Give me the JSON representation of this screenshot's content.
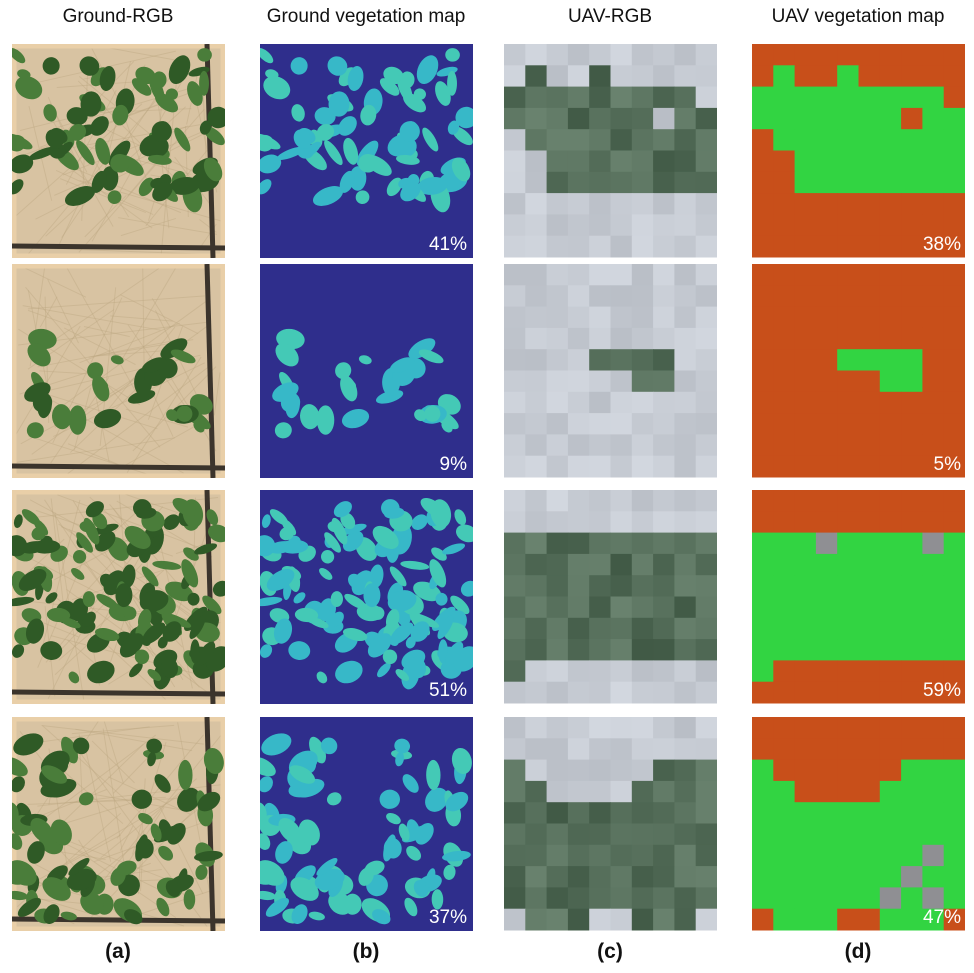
{
  "headers": [
    "Ground-RGB",
    "Ground vegetation map",
    "UAV-RGB",
    "UAV vegetation map"
  ],
  "rows": [
    {
      "ground_cover": "41%",
      "uav_cover": "38%"
    },
    {
      "ground_cover": "9%",
      "uav_cover": "5%"
    },
    {
      "ground_cover": "51%",
      "uav_cover": "59%"
    },
    {
      "ground_cover": "37%",
      "uav_cover": "47%"
    }
  ],
  "panel_labels": [
    "(a)",
    "(b)",
    "(c)",
    "(d)"
  ]
}
